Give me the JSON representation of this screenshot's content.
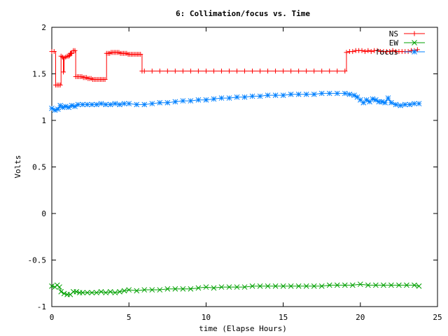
{
  "chart_data": {
    "type": "line",
    "title": "6: Collimation/focus vs. Time",
    "xlabel": "time (Elapse Hours)",
    "ylabel": "Volts",
    "xlim": [
      0,
      25
    ],
    "ylim": [
      -1,
      2
    ],
    "x_ticks": [
      "0",
      "5",
      "10",
      "15",
      "20",
      "25"
    ],
    "x_tick_values": [
      0,
      5,
      10,
      15,
      20,
      25
    ],
    "y_ticks": [
      "-1",
      "-0.5",
      "0",
      "0.5",
      "1",
      "1.5",
      "2"
    ],
    "y_tick_values": [
      -1,
      -0.5,
      0,
      0.5,
      1,
      1.5,
      2
    ],
    "grid": false,
    "legend_position": "top-right",
    "series": [
      {
        "name": "NS",
        "color": "#ff0000",
        "marker": "plus",
        "style": "steps-with-points",
        "points": [
          [
            0.0,
            1.74
          ],
          [
            0.15,
            1.74
          ],
          [
            0.25,
            1.38
          ],
          [
            0.35,
            1.38
          ],
          [
            0.45,
            1.38
          ],
          [
            0.55,
            1.38
          ],
          [
            0.6,
            1.69
          ],
          [
            0.7,
            1.68
          ],
          [
            0.75,
            1.52
          ],
          [
            0.8,
            1.67
          ],
          [
            0.9,
            1.68
          ],
          [
            1.0,
            1.69
          ],
          [
            1.1,
            1.69
          ],
          [
            1.15,
            1.7
          ],
          [
            1.2,
            1.72
          ],
          [
            1.25,
            1.72
          ],
          [
            1.3,
            1.72
          ],
          [
            1.4,
            1.75
          ],
          [
            1.5,
            1.75
          ],
          [
            1.55,
            1.47
          ],
          [
            1.65,
            1.47
          ],
          [
            1.75,
            1.47
          ],
          [
            1.85,
            1.47
          ],
          [
            1.95,
            1.47
          ],
          [
            2.05,
            1.46
          ],
          [
            2.15,
            1.46
          ],
          [
            2.25,
            1.46
          ],
          [
            2.35,
            1.45
          ],
          [
            2.45,
            1.45
          ],
          [
            2.55,
            1.45
          ],
          [
            2.65,
            1.44
          ],
          [
            2.75,
            1.44
          ],
          [
            2.85,
            1.44
          ],
          [
            2.95,
            1.44
          ],
          [
            3.05,
            1.44
          ],
          [
            3.15,
            1.44
          ],
          [
            3.25,
            1.44
          ],
          [
            3.35,
            1.44
          ],
          [
            3.45,
            1.44
          ],
          [
            3.55,
            1.72
          ],
          [
            3.65,
            1.72
          ],
          [
            3.75,
            1.72
          ],
          [
            3.85,
            1.73
          ],
          [
            3.95,
            1.73
          ],
          [
            4.05,
            1.73
          ],
          [
            4.15,
            1.73
          ],
          [
            4.25,
            1.73
          ],
          [
            4.35,
            1.73
          ],
          [
            4.45,
            1.72
          ],
          [
            4.55,
            1.72
          ],
          [
            4.65,
            1.72
          ],
          [
            4.75,
            1.72
          ],
          [
            4.85,
            1.72
          ],
          [
            4.95,
            1.71
          ],
          [
            5.05,
            1.71
          ],
          [
            5.15,
            1.71
          ],
          [
            5.25,
            1.71
          ],
          [
            5.35,
            1.71
          ],
          [
            5.45,
            1.71
          ],
          [
            5.55,
            1.71
          ],
          [
            5.65,
            1.71
          ],
          [
            5.75,
            1.71
          ],
          [
            5.85,
            1.53
          ],
          [
            6.0,
            1.53
          ],
          [
            6.5,
            1.53
          ],
          [
            7.0,
            1.53
          ],
          [
            7.5,
            1.53
          ],
          [
            8.0,
            1.53
          ],
          [
            8.5,
            1.53
          ],
          [
            9.0,
            1.53
          ],
          [
            9.5,
            1.53
          ],
          [
            10.0,
            1.53
          ],
          [
            10.5,
            1.53
          ],
          [
            11.0,
            1.53
          ],
          [
            11.5,
            1.53
          ],
          [
            12.0,
            1.53
          ],
          [
            12.5,
            1.53
          ],
          [
            13.0,
            1.53
          ],
          [
            13.5,
            1.53
          ],
          [
            14.0,
            1.53
          ],
          [
            14.5,
            1.53
          ],
          [
            15.0,
            1.53
          ],
          [
            15.5,
            1.53
          ],
          [
            16.0,
            1.53
          ],
          [
            16.5,
            1.53
          ],
          [
            17.0,
            1.53
          ],
          [
            17.5,
            1.53
          ],
          [
            18.0,
            1.53
          ],
          [
            18.5,
            1.53
          ],
          [
            19.0,
            1.53
          ],
          [
            19.1,
            1.73
          ],
          [
            19.3,
            1.74
          ],
          [
            19.5,
            1.74
          ],
          [
            19.7,
            1.75
          ],
          [
            19.9,
            1.75
          ],
          [
            20.1,
            1.75
          ],
          [
            20.3,
            1.74
          ],
          [
            20.5,
            1.75
          ],
          [
            20.7,
            1.74
          ],
          [
            20.9,
            1.75
          ],
          [
            21.1,
            1.75
          ],
          [
            21.3,
            1.74
          ],
          [
            21.5,
            1.74
          ],
          [
            21.7,
            1.74
          ],
          [
            21.9,
            1.74
          ],
          [
            22.1,
            1.75
          ],
          [
            22.3,
            1.74
          ],
          [
            22.5,
            1.74
          ],
          [
            22.7,
            1.74
          ],
          [
            22.9,
            1.74
          ],
          [
            23.1,
            1.74
          ],
          [
            23.3,
            1.75
          ],
          [
            23.5,
            1.75
          ],
          [
            23.7,
            1.76
          ]
        ]
      },
      {
        "name": "EW",
        "color": "#00a000",
        "marker": "cross",
        "style": "linespoints",
        "points": [
          [
            0.0,
            -0.78
          ],
          [
            0.2,
            -0.79
          ],
          [
            0.35,
            -0.77
          ],
          [
            0.5,
            -0.79
          ],
          [
            0.6,
            -0.84
          ],
          [
            0.8,
            -0.86
          ],
          [
            1.0,
            -0.87
          ],
          [
            1.2,
            -0.87
          ],
          [
            1.4,
            -0.84
          ],
          [
            1.6,
            -0.84
          ],
          [
            1.8,
            -0.85
          ],
          [
            2.0,
            -0.85
          ],
          [
            2.3,
            -0.85
          ],
          [
            2.6,
            -0.85
          ],
          [
            2.9,
            -0.85
          ],
          [
            3.2,
            -0.84
          ],
          [
            3.5,
            -0.85
          ],
          [
            3.8,
            -0.84
          ],
          [
            4.1,
            -0.85
          ],
          [
            4.4,
            -0.84
          ],
          [
            4.7,
            -0.83
          ],
          [
            5.0,
            -0.82
          ],
          [
            5.5,
            -0.83
          ],
          [
            6.0,
            -0.82
          ],
          [
            6.5,
            -0.82
          ],
          [
            7.0,
            -0.82
          ],
          [
            7.5,
            -0.81
          ],
          [
            8.0,
            -0.81
          ],
          [
            8.5,
            -0.81
          ],
          [
            9.0,
            -0.81
          ],
          [
            9.5,
            -0.8
          ],
          [
            10.0,
            -0.79
          ],
          [
            10.5,
            -0.8
          ],
          [
            11.0,
            -0.79
          ],
          [
            11.5,
            -0.79
          ],
          [
            12.0,
            -0.79
          ],
          [
            12.5,
            -0.79
          ],
          [
            13.0,
            -0.78
          ],
          [
            13.5,
            -0.78
          ],
          [
            14.0,
            -0.78
          ],
          [
            14.5,
            -0.78
          ],
          [
            15.0,
            -0.78
          ],
          [
            15.5,
            -0.78
          ],
          [
            16.0,
            -0.78
          ],
          [
            16.5,
            -0.78
          ],
          [
            17.0,
            -0.78
          ],
          [
            17.5,
            -0.78
          ],
          [
            18.0,
            -0.77
          ],
          [
            18.5,
            -0.77
          ],
          [
            19.0,
            -0.77
          ],
          [
            19.5,
            -0.77
          ],
          [
            20.0,
            -0.76
          ],
          [
            20.5,
            -0.77
          ],
          [
            21.0,
            -0.77
          ],
          [
            21.5,
            -0.77
          ],
          [
            22.0,
            -0.77
          ],
          [
            22.5,
            -0.77
          ],
          [
            23.0,
            -0.77
          ],
          [
            23.5,
            -0.77
          ],
          [
            23.8,
            -0.78
          ]
        ]
      },
      {
        "name": "focus",
        "color": "#0080ff",
        "marker": "star",
        "style": "linespoints",
        "points": [
          [
            0.0,
            1.13
          ],
          [
            0.2,
            1.11
          ],
          [
            0.4,
            1.12
          ],
          [
            0.55,
            1.16
          ],
          [
            0.7,
            1.14
          ],
          [
            0.9,
            1.15
          ],
          [
            1.1,
            1.14
          ],
          [
            1.3,
            1.16
          ],
          [
            1.5,
            1.15
          ],
          [
            1.7,
            1.17
          ],
          [
            2.0,
            1.17
          ],
          [
            2.3,
            1.17
          ],
          [
            2.6,
            1.17
          ],
          [
            2.9,
            1.17
          ],
          [
            3.2,
            1.18
          ],
          [
            3.5,
            1.17
          ],
          [
            3.8,
            1.17
          ],
          [
            4.1,
            1.18
          ],
          [
            4.4,
            1.17
          ],
          [
            4.7,
            1.18
          ],
          [
            5.0,
            1.18
          ],
          [
            5.5,
            1.17
          ],
          [
            6.0,
            1.17
          ],
          [
            6.5,
            1.18
          ],
          [
            7.0,
            1.19
          ],
          [
            7.5,
            1.19
          ],
          [
            8.0,
            1.2
          ],
          [
            8.5,
            1.21
          ],
          [
            9.0,
            1.21
          ],
          [
            9.5,
            1.22
          ],
          [
            10.0,
            1.22
          ],
          [
            10.5,
            1.23
          ],
          [
            11.0,
            1.24
          ],
          [
            11.5,
            1.24
          ],
          [
            12.0,
            1.25
          ],
          [
            12.5,
            1.25
          ],
          [
            13.0,
            1.26
          ],
          [
            13.5,
            1.26
          ],
          [
            14.0,
            1.27
          ],
          [
            14.5,
            1.27
          ],
          [
            15.0,
            1.27
          ],
          [
            15.5,
            1.28
          ],
          [
            16.0,
            1.28
          ],
          [
            16.5,
            1.28
          ],
          [
            17.0,
            1.28
          ],
          [
            17.5,
            1.29
          ],
          [
            18.0,
            1.29
          ],
          [
            18.5,
            1.29
          ],
          [
            19.0,
            1.29
          ],
          [
            19.3,
            1.28
          ],
          [
            19.6,
            1.27
          ],
          [
            19.8,
            1.25
          ],
          [
            20.0,
            1.22
          ],
          [
            20.2,
            1.19
          ],
          [
            20.4,
            1.22
          ],
          [
            20.6,
            1.2
          ],
          [
            20.8,
            1.23
          ],
          [
            21.0,
            1.22
          ],
          [
            21.2,
            1.2
          ],
          [
            21.4,
            1.2
          ],
          [
            21.6,
            1.19
          ],
          [
            21.8,
            1.24
          ],
          [
            22.0,
            1.19
          ],
          [
            22.3,
            1.17
          ],
          [
            22.6,
            1.16
          ],
          [
            22.9,
            1.17
          ],
          [
            23.2,
            1.17
          ],
          [
            23.5,
            1.18
          ],
          [
            23.8,
            1.18
          ]
        ]
      }
    ]
  }
}
